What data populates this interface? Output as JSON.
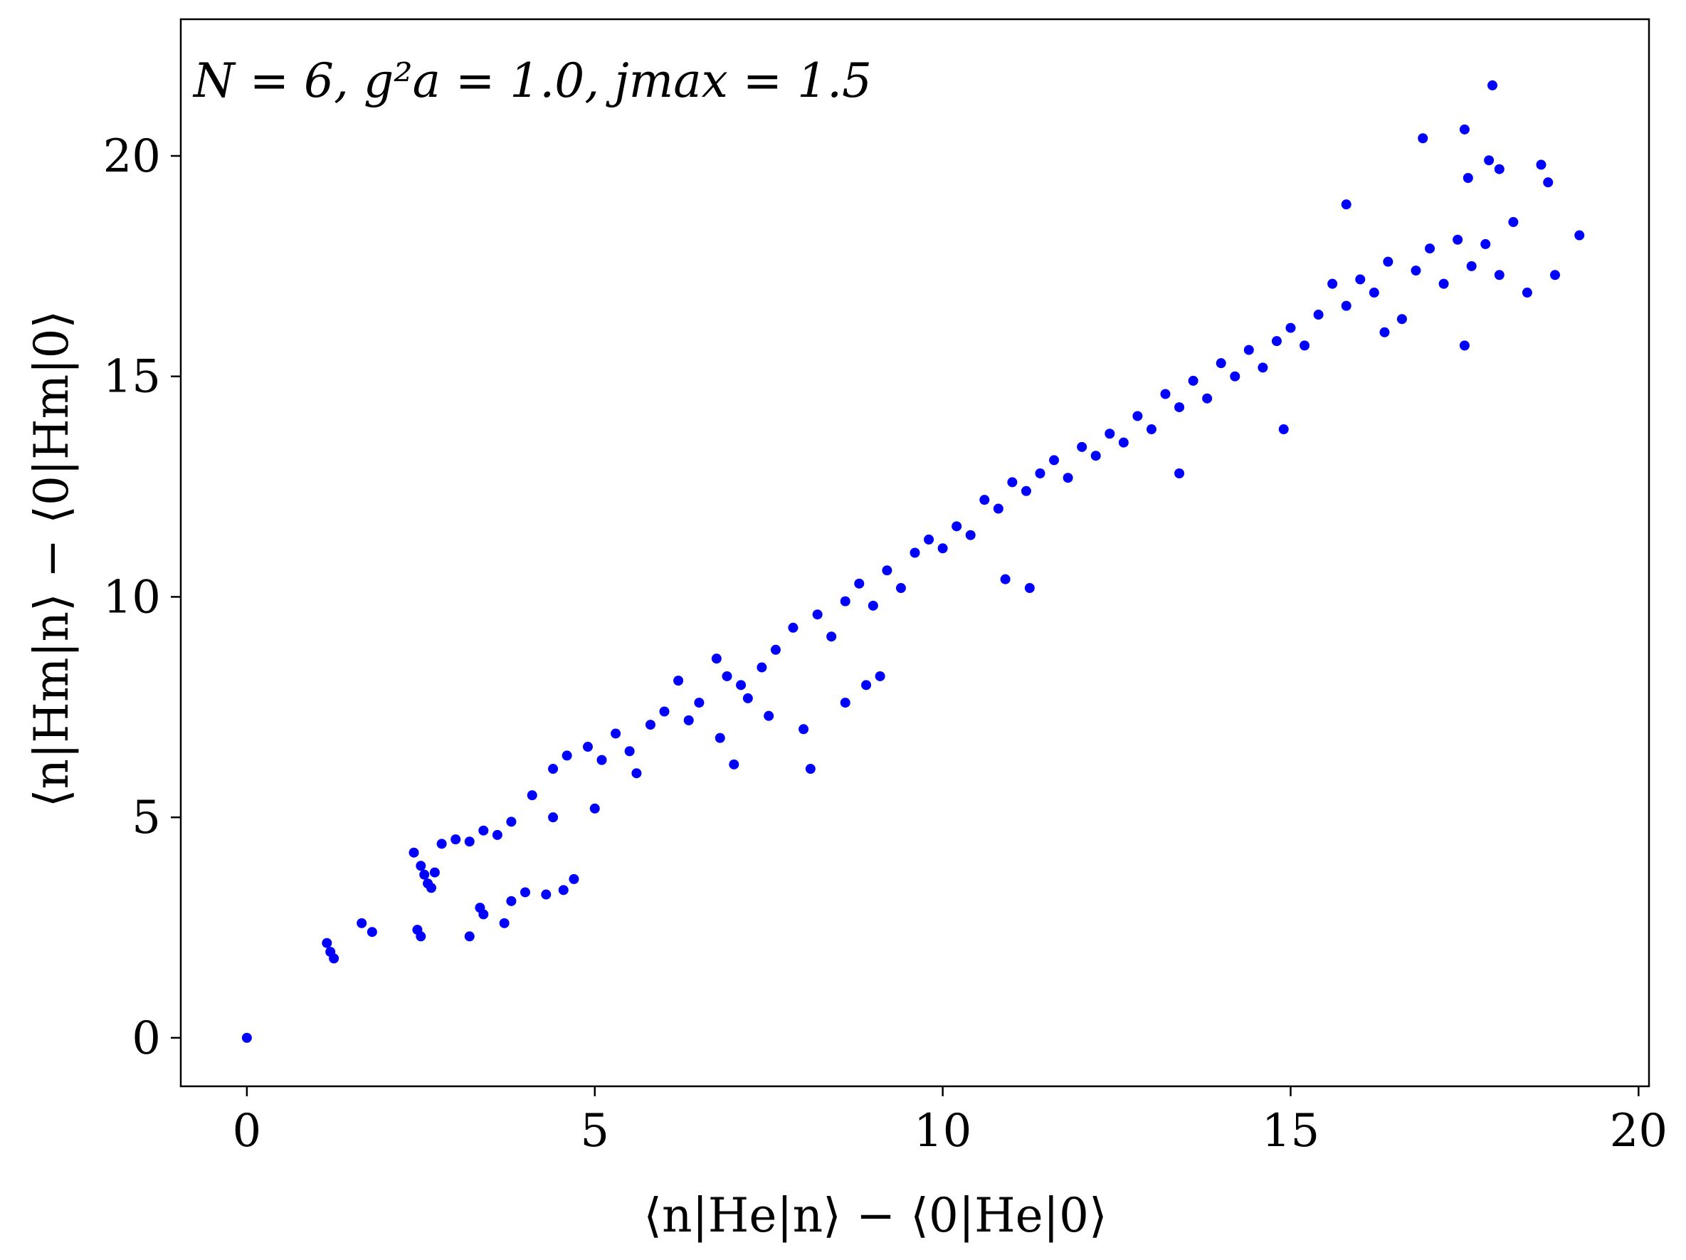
{
  "chart_data": {
    "type": "scatter",
    "annotation": "N = 6, g²a = 1.0, jmax = 1.5",
    "xlabel": "⟨n|He|n⟩ − ⟨0|He|0⟩",
    "ylabel": "⟨n|Hm|n⟩ − ⟨0|Hm|0⟩",
    "xlim": [
      -0.95,
      20.15
    ],
    "ylim": [
      -1.1,
      23.1
    ],
    "xticks": [
      "0",
      "5",
      "10",
      "15",
      "20"
    ],
    "yticks": [
      "0",
      "5",
      "10",
      "15",
      "20"
    ],
    "grid": false,
    "color": "#0000ff",
    "points": [
      [
        0.0,
        0.0
      ],
      [
        1.15,
        2.15
      ],
      [
        1.2,
        1.95
      ],
      [
        1.25,
        1.8
      ],
      [
        1.65,
        2.6
      ],
      [
        1.8,
        2.4
      ],
      [
        2.45,
        2.45
      ],
      [
        2.5,
        2.3
      ],
      [
        2.4,
        4.2
      ],
      [
        2.5,
        3.9
      ],
      [
        2.55,
        3.7
      ],
      [
        2.6,
        3.5
      ],
      [
        2.65,
        3.4
      ],
      [
        2.7,
        3.75
      ],
      [
        3.2,
        2.3
      ],
      [
        3.35,
        2.95
      ],
      [
        3.4,
        2.8
      ],
      [
        3.7,
        2.6
      ],
      [
        3.8,
        3.1
      ],
      [
        4.0,
        3.3
      ],
      [
        4.3,
        3.25
      ],
      [
        4.55,
        3.35
      ],
      [
        4.7,
        3.6
      ],
      [
        2.8,
        4.4
      ],
      [
        3.0,
        4.5
      ],
      [
        3.2,
        4.45
      ],
      [
        3.4,
        4.7
      ],
      [
        3.6,
        4.6
      ],
      [
        3.8,
        4.9
      ],
      [
        4.1,
        5.5
      ],
      [
        4.4,
        6.1
      ],
      [
        4.6,
        6.4
      ],
      [
        4.9,
        6.6
      ],
      [
        5.1,
        6.3
      ],
      [
        5.3,
        6.9
      ],
      [
        5.5,
        6.5
      ],
      [
        5.8,
        7.1
      ],
      [
        6.0,
        7.4
      ],
      [
        6.2,
        8.1
      ],
      [
        6.35,
        7.2
      ],
      [
        6.5,
        7.6
      ],
      [
        6.75,
        8.6
      ],
      [
        6.9,
        8.2
      ],
      [
        7.1,
        8.0
      ],
      [
        7.2,
        7.7
      ],
      [
        7.0,
        6.2
      ],
      [
        7.4,
        8.4
      ],
      [
        7.6,
        8.8
      ],
      [
        7.85,
        9.3
      ],
      [
        8.0,
        7.0
      ],
      [
        8.1,
        6.1
      ],
      [
        8.2,
        9.6
      ],
      [
        8.4,
        9.1
      ],
      [
        8.6,
        9.9
      ],
      [
        8.8,
        10.3
      ],
      [
        9.0,
        9.8
      ],
      [
        9.2,
        10.6
      ],
      [
        9.4,
        10.2
      ],
      [
        9.6,
        11.0
      ],
      [
        9.8,
        11.3
      ],
      [
        10.0,
        11.1
      ],
      [
        10.2,
        11.6
      ],
      [
        10.4,
        11.4
      ],
      [
        10.6,
        12.2
      ],
      [
        10.8,
        12.0
      ],
      [
        11.0,
        12.6
      ],
      [
        11.2,
        12.4
      ],
      [
        11.4,
        12.8
      ],
      [
        11.6,
        13.1
      ],
      [
        11.8,
        12.7
      ],
      [
        12.0,
        13.4
      ],
      [
        12.2,
        13.2
      ],
      [
        12.4,
        13.7
      ],
      [
        12.6,
        13.5
      ],
      [
        12.8,
        14.1
      ],
      [
        13.0,
        13.8
      ],
      [
        13.2,
        14.6
      ],
      [
        13.4,
        14.3
      ],
      [
        13.6,
        14.9
      ],
      [
        13.8,
        14.5
      ],
      [
        14.0,
        15.3
      ],
      [
        14.2,
        15.0
      ],
      [
        14.4,
        15.6
      ],
      [
        14.6,
        15.2
      ],
      [
        14.8,
        15.8
      ],
      [
        15.0,
        16.1
      ],
      [
        15.2,
        15.7
      ],
      [
        15.4,
        16.4
      ],
      [
        15.6,
        17.1
      ],
      [
        15.8,
        16.6
      ],
      [
        16.0,
        17.2
      ],
      [
        16.2,
        16.9
      ],
      [
        16.4,
        17.6
      ],
      [
        16.6,
        16.3
      ],
      [
        16.8,
        17.4
      ],
      [
        17.0,
        17.9
      ],
      [
        17.2,
        17.1
      ],
      [
        17.4,
        18.1
      ],
      [
        17.6,
        17.5
      ],
      [
        17.8,
        18.0
      ],
      [
        18.0,
        17.3
      ],
      [
        18.2,
        18.5
      ],
      [
        18.4,
        16.9
      ],
      [
        18.6,
        19.8
      ],
      [
        18.7,
        19.4
      ],
      [
        18.8,
        17.3
      ],
      [
        19.15,
        18.2
      ],
      [
        17.9,
        21.6
      ],
      [
        17.5,
        20.6
      ],
      [
        16.9,
        20.4
      ],
      [
        17.55,
        19.5
      ],
      [
        17.85,
        19.9
      ],
      [
        18.0,
        19.7
      ],
      [
        15.8,
        18.9
      ],
      [
        16.35,
        16.0
      ],
      [
        17.5,
        15.7
      ],
      [
        14.9,
        13.8
      ],
      [
        13.4,
        12.8
      ],
      [
        11.25,
        10.2
      ],
      [
        10.9,
        10.4
      ],
      [
        9.1,
        8.2
      ],
      [
        8.9,
        8.0
      ],
      [
        8.6,
        7.6
      ],
      [
        7.5,
        7.3
      ],
      [
        6.8,
        6.8
      ],
      [
        5.6,
        6.0
      ],
      [
        5.0,
        5.2
      ],
      [
        4.4,
        5.0
      ]
    ]
  }
}
